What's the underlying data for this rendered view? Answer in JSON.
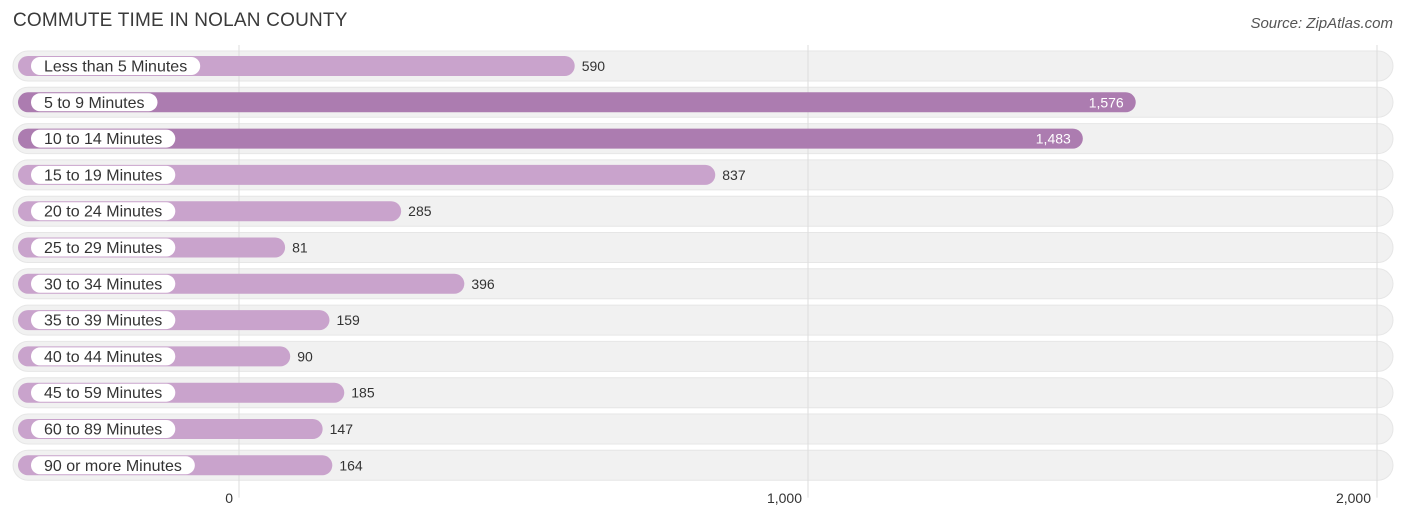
{
  "header": {
    "title": "COMMUTE TIME IN NOLAN COUNTY",
    "source": "Source: ZipAtlas.com"
  },
  "colors": {
    "bar_normal": "#c9a3cc",
    "bar_highlight": "#ac7cb0",
    "row_background": "#f1f1f1",
    "grid": "#dddddd"
  },
  "chart_data": {
    "type": "bar",
    "orientation": "horizontal",
    "title": "COMMUTE TIME IN NOLAN COUNTY",
    "categories": [
      "Less than 5 Minutes",
      "5 to 9 Minutes",
      "10 to 14 Minutes",
      "15 to 19 Minutes",
      "20 to 24 Minutes",
      "25 to 29 Minutes",
      "30 to 34 Minutes",
      "35 to 39 Minutes",
      "40 to 44 Minutes",
      "45 to 59 Minutes",
      "60 to 89 Minutes",
      "90 or more Minutes"
    ],
    "values": [
      590,
      1576,
      1483,
      837,
      285,
      81,
      396,
      159,
      90,
      185,
      147,
      164
    ],
    "value_labels": [
      "590",
      "1,576",
      "1,483",
      "837",
      "285",
      "81",
      "396",
      "159",
      "90",
      "185",
      "147",
      "164"
    ],
    "highlighted": [
      false,
      true,
      true,
      false,
      false,
      false,
      false,
      false,
      false,
      false,
      false,
      false
    ],
    "xlim": [
      0,
      2000
    ],
    "xticks": [
      0,
      1000,
      2000
    ],
    "xtick_labels": [
      "0",
      "1,000",
      "2,000"
    ],
    "grid": true
  }
}
